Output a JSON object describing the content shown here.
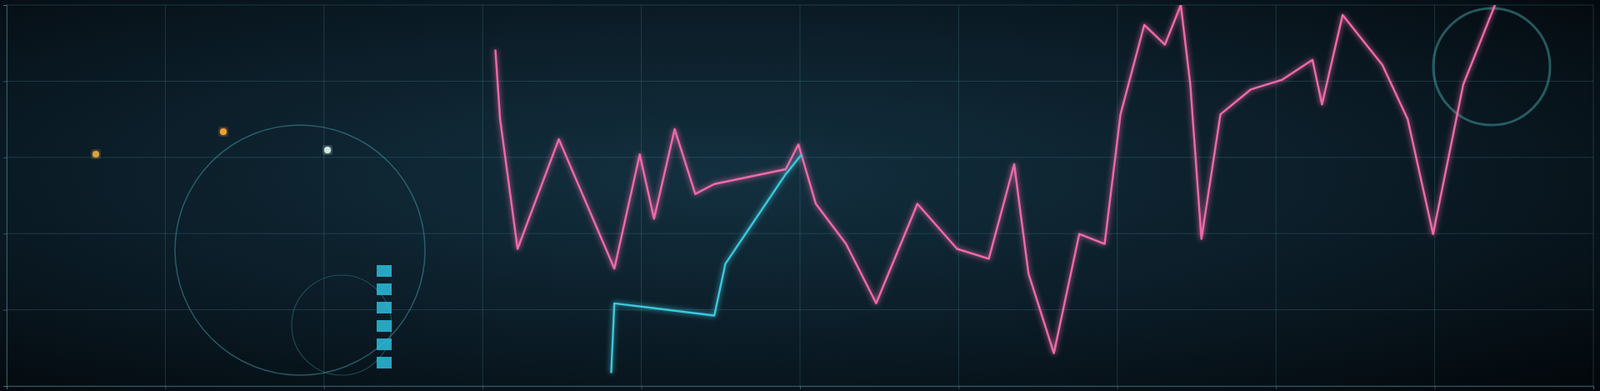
{
  "chart_data": {
    "type": "line",
    "xlim": [
      0,
      100
    ],
    "xticks": [
      0,
      10,
      20,
      30,
      40,
      50,
      60,
      70,
      80,
      90,
      100
    ],
    "ylim": [
      0,
      100
    ],
    "yticks": [
      0,
      20,
      40,
      60,
      80,
      100
    ],
    "grid": true,
    "tick_labels": false,
    "series": [
      {
        "color": "#f06aa8",
        "line_style": "solid",
        "x": [
          30.8,
          31.1,
          32.2,
          34.8,
          38.3,
          39.9,
          40.8,
          42.1,
          43.4,
          44.6,
          49.1,
          49.9,
          51.0,
          52.9,
          54.8,
          57.4,
          59.9,
          61.9,
          63.5,
          64.4,
          66.0,
          67.6,
          69.2,
          70.2,
          71.7,
          73.0,
          74.0,
          74.6,
          75.3,
          76.5,
          78.4,
          80.4,
          82.3,
          82.9,
          84.2,
          86.7,
          88.3,
          89.9,
          91.8,
          93.8
        ],
        "values": [
          88.3,
          70,
          36,
          64.8,
          30.8,
          60.8,
          43.9,
          67.4,
          50.4,
          53,
          56.9,
          63.4,
          47.8,
          37.3,
          21.7,
          47.8,
          36,
          33.4,
          58.2,
          29.5,
          8.6,
          39.9,
          37.3,
          71.3,
          94.8,
          89.6,
          100,
          79.1,
          38.6,
          71.3,
          77.8,
          80.4,
          85.6,
          73.9,
          97.4,
          84.3,
          70,
          39.9,
          79.1,
          100
        ]
      },
      {
        "color": "#3cc8dc",
        "line_style": "solid",
        "x": [
          38.1,
          38.3,
          44.6,
          45.3,
          49.1,
          50.1
        ],
        "values": [
          3.4,
          21.7,
          18.5,
          32.1,
          55.6,
          60.8
        ]
      }
    ]
  }
}
